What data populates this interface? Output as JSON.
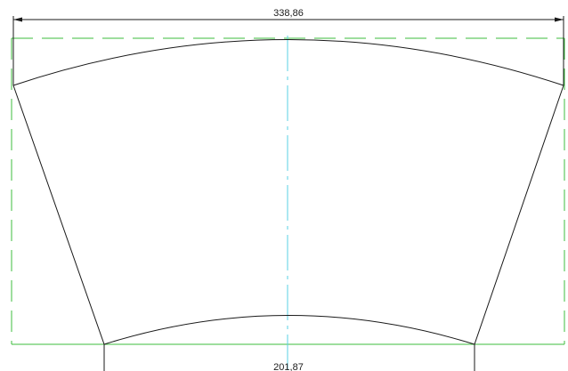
{
  "drawing": {
    "dimensions": {
      "top_width": "338,86",
      "bottom_width": "201,87"
    },
    "colors": {
      "outline": "#1a1a1a",
      "bounding_box": "#3cbe3c",
      "centerline": "#5ad2e6",
      "background": "#ffffff"
    }
  }
}
